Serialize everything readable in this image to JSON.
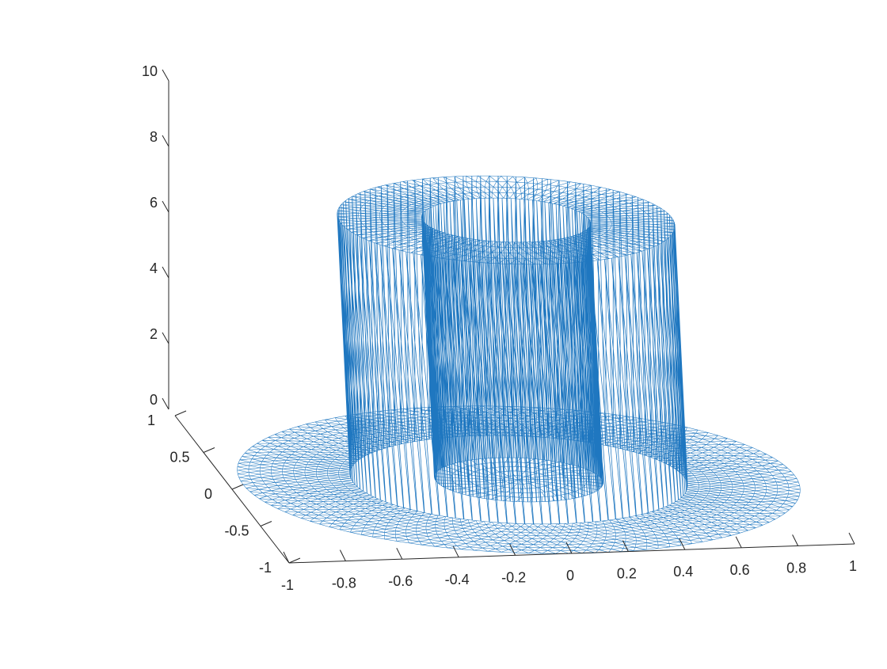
{
  "chart_data": {
    "type": "surface-mesh",
    "title": "",
    "xlabel": "",
    "ylabel": "",
    "zlabel": "",
    "xlim": [
      -1,
      1
    ],
    "ylim": [
      -1,
      1
    ],
    "zlim": [
      0,
      10
    ],
    "x_ticks": [
      "-1",
      "-0.8",
      "-0.6",
      "-0.4",
      "-0.2",
      "0",
      "0.2",
      "0.4",
      "0.6",
      "0.8",
      "1"
    ],
    "y_ticks": [
      "-1",
      "-0.5",
      "0",
      "0.5",
      "1"
    ],
    "z_ticks": [
      "0",
      "2",
      "4",
      "6",
      "8",
      "10"
    ],
    "domain_radius": 1,
    "regions": [
      {
        "name": "",
        "r_inner": 0,
        "r_outer": 0.3,
        "z": 0
      },
      {
        "name": "",
        "r_inner": 0.3,
        "r_outer": 0.6,
        "z": 8
      },
      {
        "name": "",
        "r_inner": 0.6,
        "r_outer": 1.0,
        "z": 0
      }
    ],
    "grid": false,
    "mesh_color": "#1f77c0"
  }
}
